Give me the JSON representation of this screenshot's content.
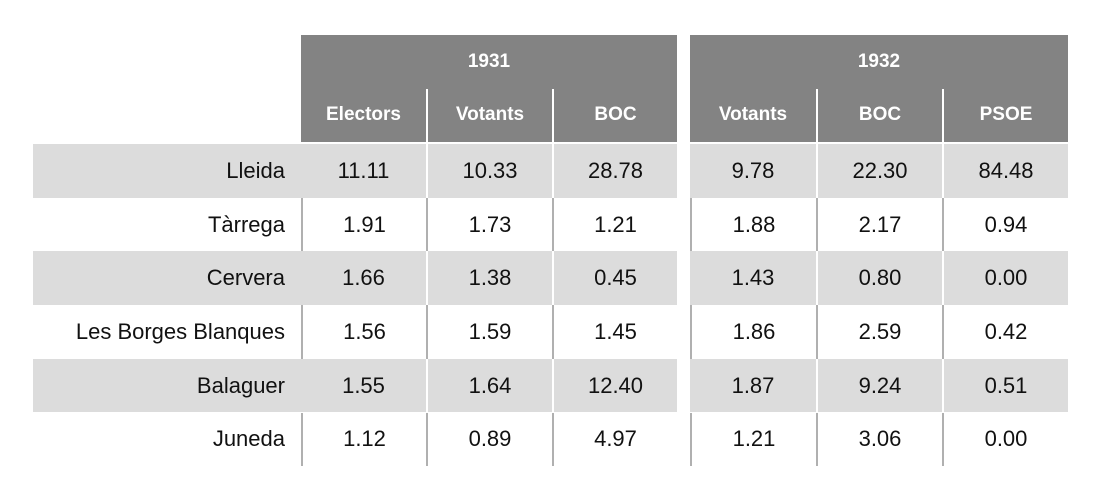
{
  "table": {
    "groups": [
      "1931",
      "1932"
    ],
    "columns": [
      "Electors",
      "Votants",
      "BOC",
      "Votants",
      "BOC",
      "PSOE"
    ],
    "rows": [
      {
        "label": "Lleida",
        "values": [
          "11.11",
          "10.33",
          "28.78",
          "9.78",
          "22.30",
          "84.48"
        ]
      },
      {
        "label": "Tàrrega",
        "values": [
          "1.91",
          "1.73",
          "1.21",
          "1.88",
          "2.17",
          "0.94"
        ]
      },
      {
        "label": "Cervera",
        "values": [
          "1.66",
          "1.38",
          "0.45",
          "1.43",
          "0.80",
          "0.00"
        ]
      },
      {
        "label": "Les Borges Blanques",
        "values": [
          "1.56",
          "1.59",
          "1.45",
          "1.86",
          "2.59",
          "0.42"
        ]
      },
      {
        "label": "Balaguer",
        "values": [
          "1.55",
          "1.64",
          "12.40",
          "1.87",
          "9.24",
          "0.51"
        ]
      },
      {
        "label": "Juneda",
        "values": [
          "1.12",
          "0.89",
          "4.97",
          "1.21",
          "3.06",
          "0.00"
        ]
      }
    ]
  }
}
